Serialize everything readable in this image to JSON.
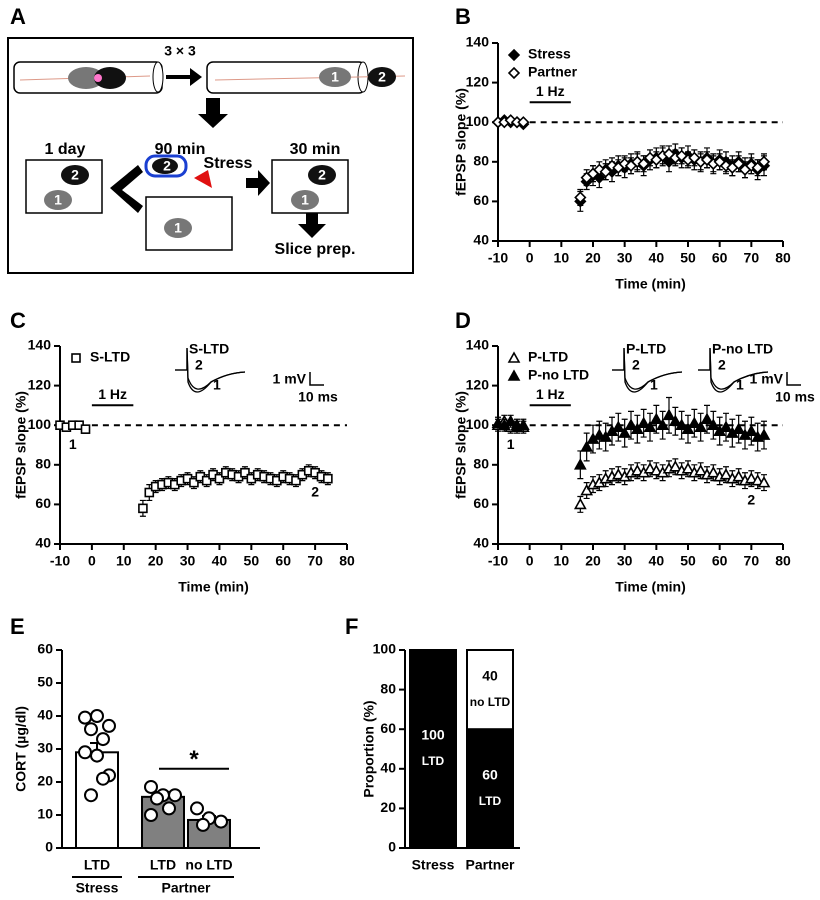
{
  "diagram": {
    "panel": "A",
    "repeat": "3 × 3",
    "times": [
      "1 day",
      "90 min",
      "30 min"
    ],
    "stress": "Stress",
    "slice": "Slice prep.",
    "mice": [
      "1",
      "2"
    ]
  },
  "chart_data": [
    {
      "type": "scatter",
      "panel": "B",
      "xlabel": "Time (min)",
      "ylabel": "fEPSP slope (%)",
      "xlim": [
        -10,
        80
      ],
      "ylim": [
        40,
        140
      ],
      "xticks": [
        -10,
        0,
        10,
        20,
        30,
        40,
        50,
        60,
        70,
        80
      ],
      "yticks": [
        40,
        60,
        80,
        100,
        120,
        140
      ],
      "hline": 100,
      "stim": {
        "label": "1 Hz",
        "span": [
          0,
          13
        ]
      },
      "legend": "upper left",
      "x": [
        -10,
        -8,
        -6,
        -4,
        -2,
        16,
        18,
        20,
        22,
        24,
        26,
        28,
        30,
        32,
        34,
        36,
        38,
        40,
        42,
        44,
        46,
        48,
        50,
        52,
        54,
        56,
        58,
        60,
        62,
        64,
        66,
        68,
        70,
        72,
        74
      ],
      "series": [
        {
          "name": "Stress",
          "color": "#000000",
          "marker": "diamond",
          "filled": true,
          "values": [
            100,
            101,
            100,
            100,
            99,
            60,
            70,
            73,
            72,
            76,
            75,
            78,
            77,
            79,
            80,
            78,
            81,
            82,
            83,
            80,
            84,
            82,
            83,
            81,
            80,
            82,
            79,
            81,
            80,
            78,
            80,
            77,
            79,
            76,
            78
          ],
          "errors": [
            1,
            1,
            1,
            1,
            1,
            5,
            4,
            5,
            5,
            5,
            5,
            5,
            5,
            5,
            5,
            5,
            5,
            5,
            5,
            5,
            5,
            5,
            5,
            5,
            5,
            5,
            5,
            5,
            5,
            5,
            5,
            5,
            5,
            5,
            5
          ]
        },
        {
          "name": "Partner",
          "color": "#000000",
          "marker": "diamond",
          "filled": false,
          "values": [
            100,
            100,
            101,
            100,
            100,
            62,
            72,
            74,
            76,
            75,
            78,
            77,
            79,
            78,
            80,
            79,
            82,
            81,
            83,
            84,
            82,
            83,
            81,
            82,
            80,
            81,
            79,
            80,
            78,
            77,
            79,
            76,
            78,
            77,
            80
          ],
          "errors": [
            1,
            1,
            1,
            1,
            1,
            4,
            4,
            4,
            4,
            4,
            4,
            4,
            4,
            4,
            4,
            4,
            4,
            4,
            4,
            4,
            4,
            4,
            4,
            4,
            4,
            4,
            4,
            4,
            4,
            4,
            4,
            4,
            4,
            4,
            4
          ]
        }
      ]
    },
    {
      "type": "scatter",
      "panel": "C",
      "xlabel": "Time (min)",
      "ylabel": "fEPSP slope (%)",
      "xlim": [
        -10,
        80
      ],
      "ylim": [
        40,
        140
      ],
      "xticks": [
        -10,
        0,
        10,
        20,
        30,
        40,
        50,
        60,
        70,
        80
      ],
      "yticks": [
        40,
        60,
        80,
        100,
        120,
        140
      ],
      "hline": 100,
      "stim": {
        "label": "1 Hz",
        "span": [
          0,
          13
        ]
      },
      "legend": "upper left",
      "annotations": [
        "1",
        "2"
      ],
      "insets": [
        {
          "title": "S-LTD",
          "labels": [
            "1",
            "2"
          ]
        }
      ],
      "scale": [
        "1 mV",
        "10 ms"
      ],
      "x": [
        -10,
        -8,
        -6,
        -4,
        -2,
        16,
        18,
        20,
        22,
        24,
        26,
        28,
        30,
        32,
        34,
        36,
        38,
        40,
        42,
        44,
        46,
        48,
        50,
        52,
        54,
        56,
        58,
        60,
        62,
        64,
        66,
        68,
        70,
        72,
        74
      ],
      "series": [
        {
          "name": "S-LTD",
          "color": "#000000",
          "marker": "square",
          "filled": false,
          "values": [
            100,
            99,
            100,
            100,
            98,
            58,
            66,
            69,
            70,
            71,
            70,
            72,
            73,
            71,
            74,
            72,
            75,
            73,
            76,
            75,
            74,
            76,
            73,
            75,
            74,
            73,
            72,
            74,
            73,
            72,
            75,
            77,
            76,
            74,
            73
          ],
          "errors": [
            2,
            2,
            2,
            2,
            2,
            4,
            4,
            3,
            3,
            3,
            3,
            3,
            3,
            3,
            3,
            3,
            3,
            3,
            3,
            3,
            3,
            3,
            3,
            3,
            3,
            3,
            3,
            3,
            3,
            3,
            3,
            3,
            3,
            3,
            3
          ]
        }
      ]
    },
    {
      "type": "scatter",
      "panel": "D",
      "xlabel": "Time (min)",
      "ylabel": "fEPSP slope (%)",
      "xlim": [
        -10,
        80
      ],
      "ylim": [
        40,
        140
      ],
      "xticks": [
        -10,
        0,
        10,
        20,
        30,
        40,
        50,
        60,
        70,
        80
      ],
      "yticks": [
        40,
        60,
        80,
        100,
        120,
        140
      ],
      "hline": 100,
      "stim": {
        "label": "1 Hz",
        "span": [
          0,
          13
        ]
      },
      "legend": "upper left",
      "annotations": [
        "1",
        "2"
      ],
      "insets": [
        {
          "title": "P-LTD",
          "labels": [
            "1",
            "2"
          ]
        },
        {
          "title": "P-no LTD",
          "labels": [
            "1",
            "2"
          ]
        }
      ],
      "scale": [
        "1 mV",
        "10 ms"
      ],
      "x": [
        -10,
        -8,
        -6,
        -4,
        -2,
        16,
        18,
        20,
        22,
        24,
        26,
        28,
        30,
        32,
        34,
        36,
        38,
        40,
        42,
        44,
        46,
        48,
        50,
        52,
        54,
        56,
        58,
        60,
        62,
        64,
        66,
        68,
        70,
        72,
        74
      ],
      "series": [
        {
          "name": "P-LTD",
          "color": "#000000",
          "marker": "triangle",
          "filled": false,
          "values": [
            100,
            102,
            99,
            100,
            99,
            60,
            67,
            70,
            71,
            73,
            74,
            75,
            74,
            76,
            77,
            76,
            78,
            77,
            76,
            78,
            79,
            77,
            78,
            76,
            77,
            75,
            76,
            74,
            75,
            73,
            74,
            72,
            73,
            72,
            71
          ],
          "errors": [
            3,
            3,
            3,
            3,
            3,
            4,
            4,
            4,
            4,
            4,
            4,
            4,
            4,
            4,
            4,
            4,
            4,
            4,
            4,
            4,
            4,
            4,
            4,
            4,
            4,
            4,
            4,
            4,
            4,
            4,
            4,
            4,
            4,
            4,
            4
          ]
        },
        {
          "name": "P-no LTD",
          "color": "#000000",
          "marker": "triangle",
          "filled": true,
          "values": [
            101,
            100,
            102,
            99,
            100,
            80,
            89,
            93,
            95,
            94,
            97,
            99,
            96,
            100,
            98,
            101,
            99,
            103,
            100,
            105,
            102,
            100,
            98,
            101,
            99,
            103,
            100,
            97,
            99,
            96,
            98,
            95,
            97,
            94,
            95
          ],
          "errors": [
            3,
            3,
            3,
            3,
            3,
            7,
            7,
            7,
            7,
            7,
            7,
            7,
            7,
            7,
            7,
            7,
            7,
            7,
            7,
            9,
            7,
            7,
            7,
            7,
            7,
            7,
            7,
            7,
            7,
            7,
            7,
            7,
            7,
            7,
            7
          ]
        }
      ]
    },
    {
      "type": "bar",
      "panel": "E",
      "ylabel": "CORT (µg/dl)",
      "ylim": [
        0,
        60
      ],
      "yticks": [
        0,
        10,
        20,
        30,
        40,
        50,
        60
      ],
      "groups": [
        {
          "name": "Stress",
          "categories": [
            "LTD"
          ],
          "values": [
            29
          ],
          "errors": [
            2.8
          ],
          "colors": [
            "#ffffff"
          ],
          "points": [
            [
              39.5,
              40,
              37,
              36,
              33,
              29,
              28,
              22,
              16,
              21
            ]
          ]
        },
        {
          "name": "Partner",
          "categories": [
            "LTD",
            "no LTD"
          ],
          "values": [
            15.5,
            8.5
          ],
          "errors": [
            1.5,
            1.2
          ],
          "colors": [
            "#808080",
            "#808080"
          ],
          "points": [
            [
              18.5,
              16,
              16,
              15,
              12,
              10
            ],
            [
              12,
              9,
              8,
              7
            ]
          ]
        }
      ],
      "significance": {
        "label": "*",
        "y": 24
      }
    },
    {
      "type": "stacked_bar",
      "panel": "F",
      "ylabel": "Proportion (%)",
      "ylim": [
        0,
        100
      ],
      "yticks": [
        0,
        20,
        40,
        60,
        80,
        100
      ],
      "categories": [
        "Stress",
        "Partner"
      ],
      "series": [
        {
          "name": "LTD",
          "color": "#000000",
          "label_color": "#ffffff",
          "values": [
            100,
            60
          ]
        },
        {
          "name": "no LTD",
          "color": "#ffffff",
          "label_color": "#000000",
          "values": [
            0,
            40
          ]
        }
      ]
    }
  ]
}
